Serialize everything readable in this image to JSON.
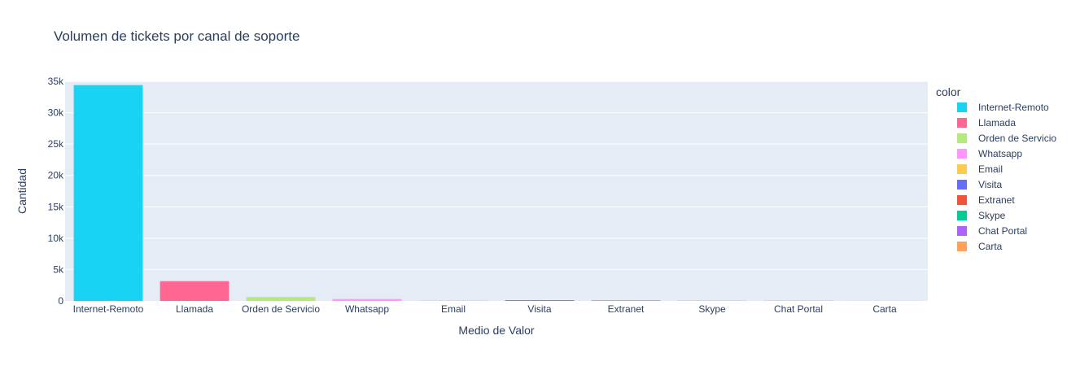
{
  "chart_data": {
    "type": "bar",
    "title": "Volumen de tickets por canal de soporte",
    "xlabel": "Medio de Valor",
    "ylabel": "Cantidad",
    "ylim": [
      0,
      35000
    ],
    "yticks": [
      0,
      5000,
      10000,
      15000,
      20000,
      25000,
      30000,
      35000
    ],
    "ytick_labels": [
      "0",
      "5k",
      "10k",
      "15k",
      "20k",
      "25k",
      "30k",
      "35k"
    ],
    "grid": true,
    "legend": {
      "title": "color",
      "placement": "right"
    },
    "categories": [
      "Internet-Remoto",
      "Llamada",
      "Orden de Servicio",
      "Whatsapp",
      "Email",
      "Visita",
      "Extranet",
      "Skype",
      "Chat Portal",
      "Carta"
    ],
    "values": [
      34400,
      3150,
      620,
      300,
      60,
      110,
      70,
      25,
      25,
      15
    ],
    "colors": [
      "#19d3f3",
      "#ff6692",
      "#b6e880",
      "#ff97ff",
      "#fecb52",
      "#636efa",
      "#ef553b",
      "#00cc96",
      "#ab63fa",
      "#ffa15a"
    ],
    "plot_bg": "#e5ecf6",
    "grid_color": "#ffffff",
    "text_color": "#2a3f5f"
  }
}
